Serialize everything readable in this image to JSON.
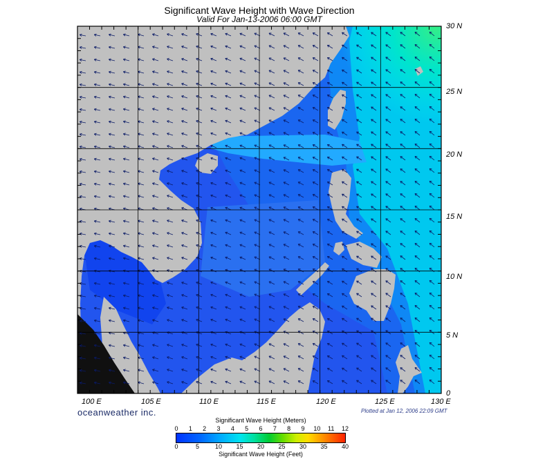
{
  "title": "Significant Wave Height with Wave Direction",
  "subtitle": "Valid For Jan-13-2006 06:00 GMT",
  "brand": "oceanweather inc.",
  "plotted": "Plotted at Jan 12, 2006 22:09 GMT",
  "map": {
    "lon_range": [
      100,
      130
    ],
    "lat_range": [
      0,
      30
    ],
    "lon_labels": [
      "100 E",
      "105 E",
      "110 E",
      "115 E",
      "120 E",
      "125 E",
      "130 E"
    ],
    "lat_labels": [
      "30 N",
      "25 N",
      "20 N",
      "15 N",
      "10 N",
      "5 N",
      "0"
    ],
    "grid": true,
    "land_color": "#c0c0c0",
    "wave_direction": "mostly from the northeast, arrows pointing southwest"
  },
  "colorbar": {
    "meters_title": "Significant Wave Height (Meters)",
    "feet_title": "Significant Wave Height (Feet)",
    "meters_ticks": [
      "0",
      "1",
      "2",
      "3",
      "4",
      "5",
      "6",
      "7",
      "8",
      "9",
      "10",
      "11",
      "12"
    ],
    "feet_ticks": [
      "0",
      "5",
      "10",
      "15",
      "20",
      "25",
      "30",
      "35",
      "40"
    ],
    "colors": [
      "#0033ff",
      "#0066ff",
      "#00aaff",
      "#00e5ee",
      "#00cc33",
      "#ccee00",
      "#ffdd00",
      "#ff2200"
    ]
  }
}
